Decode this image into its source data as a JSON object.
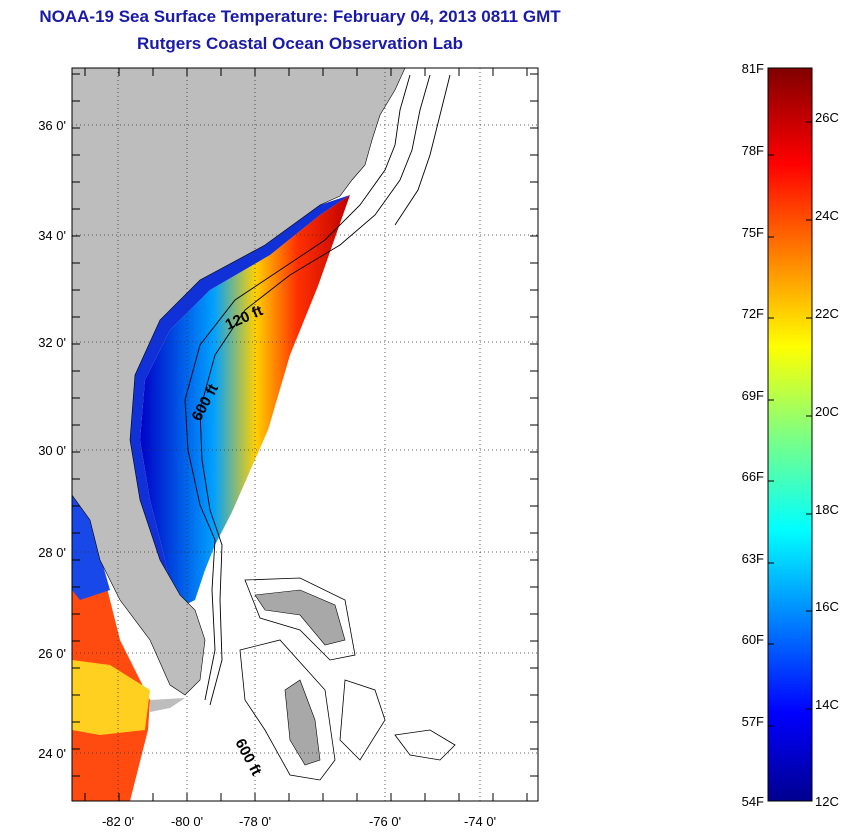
{
  "header": {
    "title": "NOAA-19 Sea Surface Temperature:  February 04, 2013 0811 GMT",
    "subtitle": "Rutgers Coastal Ocean Observation Lab"
  },
  "map": {
    "lat_ticks": [
      "36 0'",
      "34 0'",
      "32 0'",
      "30 0'",
      "28 0'",
      "26 0'",
      "24 0'"
    ],
    "lon_ticks": [
      "-82 0'",
      "-80 0'",
      "-78 0'",
      "-76 0'",
      "-74 0'"
    ],
    "contour_labels": [
      "120 ft",
      "600 ft",
      "600 ft"
    ],
    "land_color": "#bdbdbd",
    "grid": true
  },
  "colorbar": {
    "fahrenheit_labels": [
      "81F",
      "78F",
      "75F",
      "72F",
      "69F",
      "66F",
      "63F",
      "60F",
      "57F",
      "54F"
    ],
    "celsius_labels": [
      "26C",
      "24C",
      "22C",
      "20C",
      "18C",
      "16C",
      "14C",
      "12C"
    ],
    "colormap": "jet",
    "range_c": [
      12,
      27
    ]
  }
}
